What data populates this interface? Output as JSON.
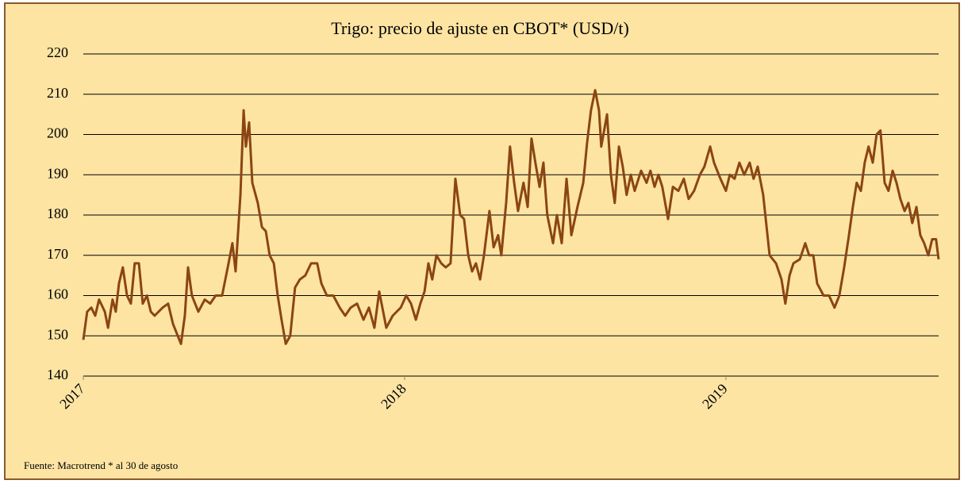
{
  "chart_data": {
    "type": "line",
    "title": "Trigo: precio de ajuste en CBOT* (USD/t)",
    "note": "Fuente: Macrotrend  * al 30 de agosto",
    "x": [
      2017.0,
      2017.012,
      2017.025,
      2017.037,
      2017.049,
      2017.067,
      2017.077,
      2017.091,
      2017.101,
      2017.111,
      2017.123,
      2017.136,
      2017.148,
      2017.16,
      2017.173,
      2017.185,
      2017.198,
      2017.21,
      2017.222,
      2017.247,
      2017.264,
      2017.279,
      2017.304,
      2017.316,
      2017.326,
      2017.338,
      2017.358,
      2017.378,
      2017.395,
      2017.412,
      2017.432,
      2017.452,
      2017.464,
      2017.474,
      2017.489,
      2017.499,
      2017.506,
      2017.516,
      2017.526,
      2017.543,
      2017.556,
      2017.568,
      2017.58,
      2017.593,
      2017.605,
      2017.617,
      2017.63,
      2017.644,
      2017.659,
      2017.674,
      2017.691,
      2017.709,
      2017.728,
      2017.741,
      2017.758,
      2017.778,
      2017.798,
      2017.815,
      2017.832,
      2017.852,
      2017.872,
      2017.889,
      2017.906,
      2017.921,
      2017.943,
      2017.963,
      2017.988,
      2018.005,
      2018.02,
      2018.035,
      2018.049,
      2018.062,
      2018.074,
      2018.086,
      2018.099,
      2018.114,
      2018.128,
      2018.143,
      2018.158,
      2018.173,
      2018.185,
      2018.198,
      2018.21,
      2018.222,
      2018.235,
      2018.247,
      2018.264,
      2018.277,
      2018.291,
      2018.301,
      2018.316,
      2018.328,
      2018.341,
      2018.353,
      2018.37,
      2018.383,
      2018.395,
      2018.407,
      2018.42,
      2018.432,
      2018.444,
      2018.462,
      2018.474,
      2018.489,
      2018.504,
      2018.519,
      2018.538,
      2018.556,
      2018.568,
      2018.58,
      2018.593,
      2018.605,
      2018.612,
      2018.63,
      2018.642,
      2018.654,
      2018.667,
      2018.679,
      2018.691,
      2018.704,
      2018.716,
      2018.736,
      2018.753,
      2018.765,
      2018.778,
      2018.79,
      2018.802,
      2018.82,
      2018.835,
      2018.852,
      2018.869,
      2018.884,
      2018.901,
      2018.919,
      2018.933,
      2018.951,
      2018.963,
      2018.983,
      2019.0,
      2019.012,
      2019.027,
      2019.042,
      2019.057,
      2019.074,
      2019.086,
      2019.099,
      2019.116,
      2019.136,
      2019.156,
      2019.173,
      2019.185,
      2019.198,
      2019.21,
      2019.23,
      2019.247,
      2019.259,
      2019.272,
      2019.284,
      2019.304,
      2019.321,
      2019.338,
      2019.353,
      2019.368,
      2019.383,
      2019.395,
      2019.407,
      2019.42,
      2019.432,
      2019.444,
      2019.457,
      2019.469,
      2019.481,
      2019.494,
      2019.506,
      2019.519,
      2019.531,
      2019.543,
      2019.556,
      2019.568,
      2019.58,
      2019.593,
      2019.605,
      2019.617,
      2019.63,
      2019.642,
      2019.654,
      2019.662
    ],
    "series": [
      {
        "color": "#8b4513",
        "values": [
          149,
          156,
          157,
          155,
          159,
          156,
          152,
          159,
          156,
          163,
          167,
          160,
          158,
          168,
          168,
          158,
          160,
          156,
          155,
          157,
          158,
          153,
          148,
          155,
          167,
          160,
          156,
          159,
          158,
          160,
          160,
          168,
          173,
          166,
          185,
          206,
          197,
          203,
          188,
          183,
          177,
          176,
          170,
          168,
          160,
          154,
          148,
          150,
          162,
          164,
          165,
          168,
          168,
          163,
          160,
          160,
          157,
          155,
          157,
          158,
          154,
          157,
          152,
          161,
          152,
          155,
          157,
          160,
          158,
          154,
          158,
          161,
          168,
          164,
          170,
          168,
          167,
          168,
          189,
          180,
          179,
          170,
          166,
          168,
          164,
          170,
          181,
          172,
          175,
          170,
          183,
          197,
          188,
          181,
          188,
          182,
          199,
          193,
          187,
          193,
          180,
          173,
          180,
          173,
          189,
          175,
          182,
          188,
          198,
          206,
          211,
          206,
          197,
          205,
          190,
          183,
          197,
          192,
          185,
          190,
          186,
          191,
          188,
          191,
          187,
          190,
          187,
          179,
          187,
          186,
          189,
          184,
          186,
          190,
          192,
          197,
          193,
          189,
          186,
          190,
          189,
          193,
          190,
          193,
          189,
          192,
          185,
          170,
          168,
          164,
          158,
          165,
          168,
          169,
          173,
          170,
          170,
          163,
          160,
          160,
          157,
          160,
          167,
          175,
          182,
          188,
          186,
          193,
          197,
          193,
          200,
          201,
          188,
          186,
          191,
          188,
          184,
          181,
          183,
          178,
          182,
          175,
          173,
          170,
          174,
          174,
          169
        ]
      }
    ],
    "xlim": [
      2017,
      2019.662
    ],
    "xticks": [
      2017,
      2018,
      2019
    ],
    "ylim": [
      140,
      220
    ],
    "yticks": [
      140,
      150,
      160,
      170,
      180,
      190,
      200,
      210,
      220
    ],
    "grid": true
  }
}
